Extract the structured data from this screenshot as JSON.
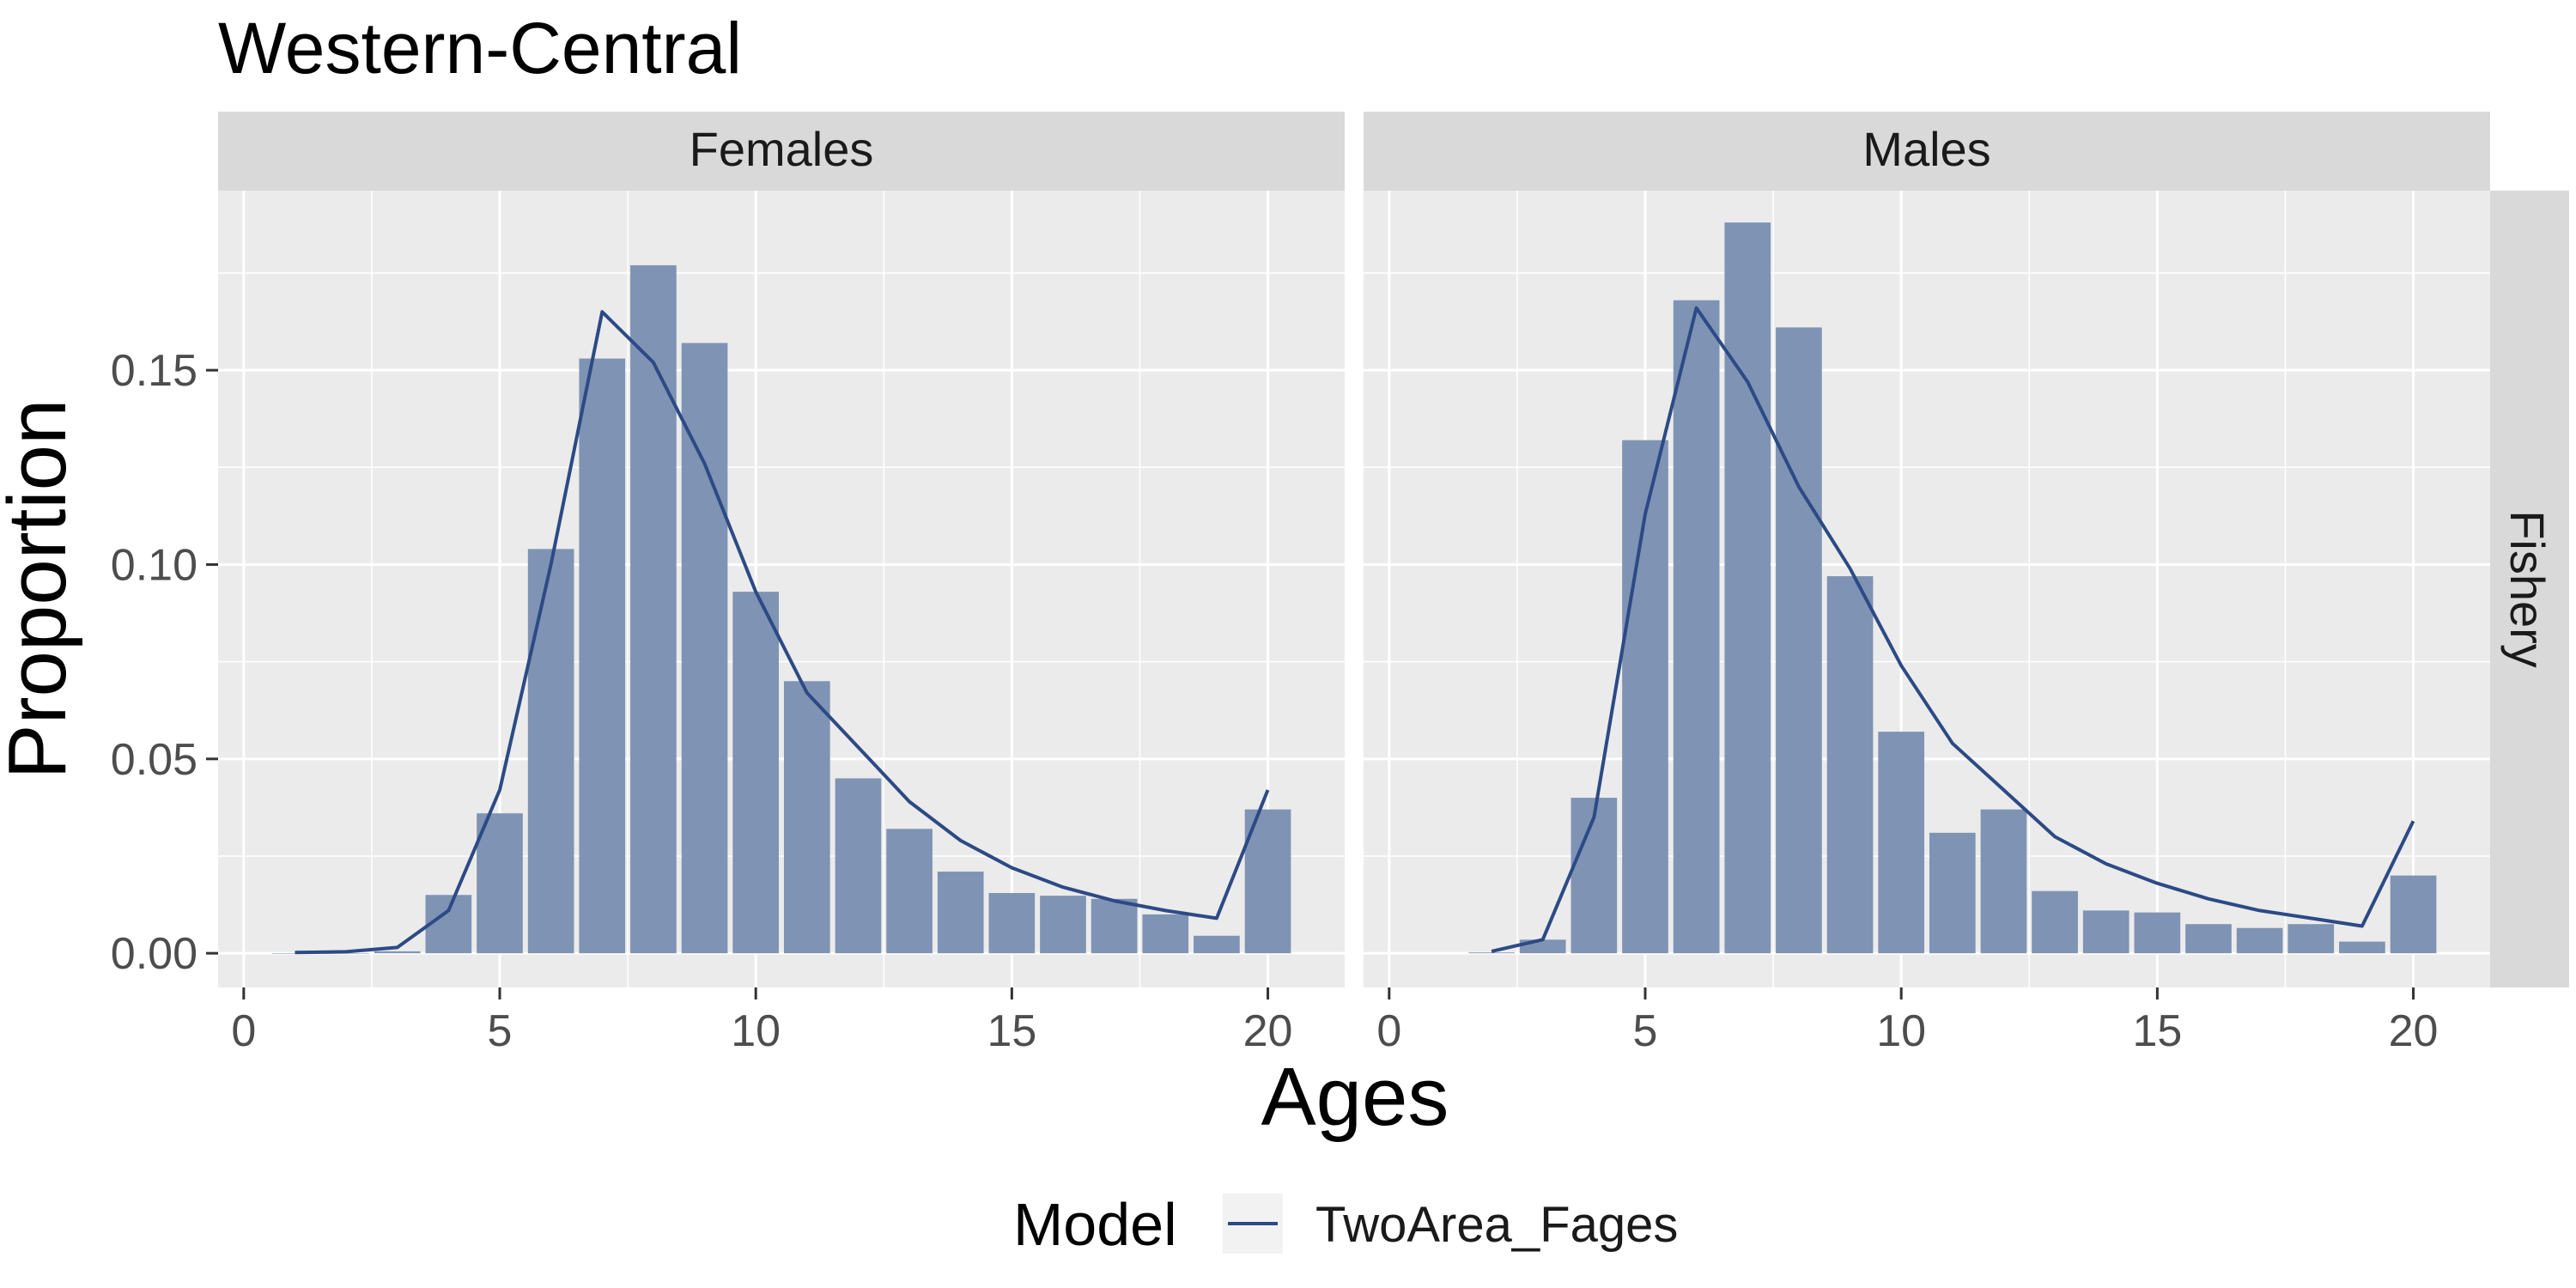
{
  "chart_data": {
    "type": "bar",
    "title": "Western-Central",
    "xlabel": "Ages",
    "ylabel": "Proportion",
    "facet_row_label": "Fishery",
    "xlim": [
      -0.5,
      21.5
    ],
    "ylim": [
      -0.0088,
      0.1962
    ],
    "x_ticks": [
      0,
      5,
      10,
      15,
      20
    ],
    "y_ticks": [
      0.0,
      0.05,
      0.1,
      0.15
    ],
    "y_tick_labels": [
      "0.00",
      "0.05",
      "0.10",
      "0.15"
    ],
    "grid": true,
    "legend": {
      "title": "Model",
      "position": "bottom",
      "entries": [
        "TwoArea_Fages"
      ]
    },
    "colors": {
      "bar": "#7f93b4",
      "line": "#2c4a85",
      "panel": "#ebebeb",
      "strip": "#d9d9d9",
      "grid": "#ffffff"
    },
    "panels": [
      {
        "label": "Females",
        "bars": {
          "x": [
            1,
            2,
            3,
            4,
            5,
            6,
            7,
            8,
            9,
            10,
            11,
            12,
            13,
            14,
            15,
            16,
            17,
            18,
            19,
            20
          ],
          "values": [
            0.0,
            0.0,
            0.0005,
            0.015,
            0.036,
            0.104,
            0.153,
            0.177,
            0.157,
            0.093,
            0.07,
            0.045,
            0.032,
            0.021,
            0.0155,
            0.0148,
            0.014,
            0.01,
            0.0045,
            0.037
          ]
        },
        "line": {
          "name": "TwoArea_Fages",
          "x": [
            1,
            2,
            3,
            4,
            5,
            6,
            7,
            8,
            9,
            10,
            11,
            12,
            13,
            14,
            15,
            16,
            17,
            18,
            19,
            20
          ],
          "values": [
            0.0002,
            0.0004,
            0.0015,
            0.011,
            0.042,
            0.1,
            0.165,
            0.152,
            0.126,
            0.093,
            0.067,
            0.053,
            0.039,
            0.029,
            0.022,
            0.017,
            0.0135,
            0.011,
            0.009,
            0.042
          ]
        }
      },
      {
        "label": "Males",
        "bars": {
          "x": [
            2,
            3,
            4,
            5,
            6,
            7,
            8,
            9,
            10,
            11,
            12,
            13,
            14,
            15,
            16,
            17,
            18,
            19,
            20
          ],
          "values": [
            0.0002,
            0.0035,
            0.04,
            0.132,
            0.168,
            0.188,
            0.161,
            0.097,
            0.057,
            0.031,
            0.037,
            0.016,
            0.011,
            0.0105,
            0.0075,
            0.0065,
            0.0075,
            0.003,
            0.02
          ]
        },
        "line": {
          "name": "TwoArea_Fages",
          "x": [
            2,
            3,
            4,
            5,
            6,
            7,
            8,
            9,
            10,
            11,
            12,
            13,
            14,
            15,
            16,
            17,
            18,
            19,
            20
          ],
          "values": [
            0.0005,
            0.0035,
            0.035,
            0.113,
            0.166,
            0.147,
            0.12,
            0.099,
            0.074,
            0.054,
            0.042,
            0.03,
            0.023,
            0.018,
            0.014,
            0.011,
            0.009,
            0.007,
            0.034
          ]
        }
      }
    ]
  }
}
